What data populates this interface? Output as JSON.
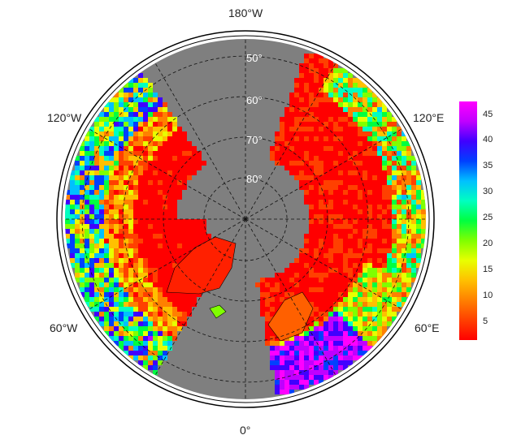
{
  "map": {
    "projection": "north-polar-stereographic",
    "background_color": "#7f7f7f",
    "land_outline_color": "#000000",
    "graticule_style": "dashed",
    "meridian_labels": {
      "top": "180°W",
      "bottom": "0°",
      "left_upper": "120°W",
      "right_upper": "120°E",
      "left_lower": "60°W",
      "right_lower": "60°E"
    },
    "parallel_labels": [
      "50°",
      "60°",
      "70°",
      "80°"
    ]
  },
  "colorbar": {
    "ticks": [
      "45",
      "40",
      "35",
      "30",
      "25",
      "20",
      "15",
      "10",
      "5"
    ],
    "colors": [
      "#ff0000",
      "#ff4000",
      "#ff8000",
      "#ffc000",
      "#e8ff00",
      "#80ff00",
      "#00ff40",
      "#00ffc0",
      "#00c0ff",
      "#0040ff",
      "#4000ff",
      "#c000ff",
      "#ff00ff"
    ],
    "range": [
      1,
      47
    ]
  }
}
